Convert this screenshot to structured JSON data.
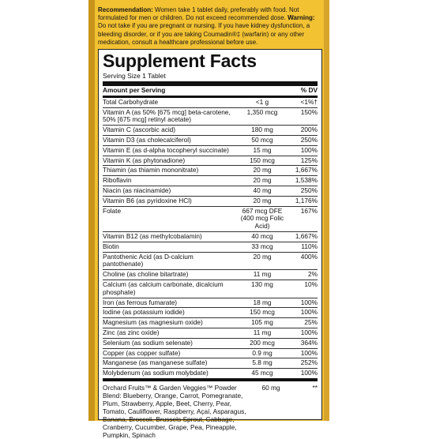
{
  "recommendation": {
    "label1": "Recommendation:",
    "text1": "Women take 1 tablet daily, preferably with food. Not formulated for men or children. Do not exceed recommended dose.",
    "label2": "Warning:",
    "text2": "Do not take if you are pregnant or nursing. If you have kidney dysfunction, a bleeding disorder, or if you are taking Coumadin®‡ (warfarin) or any other medication, consult a healthcare professional before use."
  },
  "facts": {
    "title": "Supplement Facts",
    "serving": "Serving Size 1 Tablet",
    "header": {
      "name": "Amount per Serving",
      "amt": "",
      "dv": "% DV"
    },
    "rows": [
      {
        "name": "Total Carbohydrate",
        "amt": "<1 g",
        "dv": "<1%†"
      },
      {
        "name": "Vitamin A (as 50% [675 mcg] beta-carotene, 50% [675 mcg] retinyl acetate)",
        "amt": "1,350 mcg",
        "dv": "150%"
      },
      {
        "name": "Vitamin C (ascorbic acid)",
        "amt": "180 mg",
        "dv": "200%"
      },
      {
        "name": "Vitamin D3 (as cholecalciferol)",
        "amt": "50 mcg",
        "dv": "250%"
      },
      {
        "name": "Vitamin E (as d-alpha tocopheryl succinate)",
        "amt": "15 mg",
        "dv": "100%"
      },
      {
        "name": "Vitamin K (as phytonadione)",
        "amt": "150 mcg",
        "dv": "125%"
      },
      {
        "name": "Thiamin (as thiamin mononitrate)",
        "amt": "20 mg",
        "dv": "1,667%"
      },
      {
        "name": "Riboflavin",
        "amt": "20 mg",
        "dv": "1,538%"
      },
      {
        "name": "Niacin (as niacinamide)",
        "amt": "40 mg",
        "dv": "250%"
      },
      {
        "name": "Vitamin B6 (as pyridoxine HCl)",
        "amt": "20 mg",
        "dv": "1,176%"
      },
      {
        "name": "Folate",
        "amt": "667 mcg DFE (400 mcg Folic Acid)",
        "dv": "167%"
      },
      {
        "name": "Vitamin B12 (as methylcobalamin)",
        "amt": "40 mcg",
        "dv": "1,667%"
      },
      {
        "name": "Biotin",
        "amt": "33 mcg",
        "dv": "110%"
      },
      {
        "name": "Pantothenic Acid (as D-calcium pantothenate)",
        "amt": "20 mg",
        "dv": "400%"
      },
      {
        "name": "Choline (as choline bitartrate)",
        "amt": "11 mg",
        "dv": "2%"
      },
      {
        "name": "Calcium (as calcium carbonate, dicalcium phosphate)",
        "amt": "130 mg",
        "dv": "10%"
      },
      {
        "name": "Iron (as ferrous fumarate)",
        "amt": "18 mg",
        "dv": "100%"
      },
      {
        "name": "Iodine (as potassium iodide)",
        "amt": "150 mcg",
        "dv": "100%"
      },
      {
        "name": "Magnesium (as magnesium oxide)",
        "amt": "105 mg",
        "dv": "25%"
      },
      {
        "name": "Zinc (as zinc oxide)",
        "amt": "11 mg",
        "dv": "100%"
      },
      {
        "name": "Selenium (as sodium selenate)",
        "amt": "200 mcg",
        "dv": "364%"
      },
      {
        "name": "Copper (as copper sulfate)",
        "amt": "0.9 mg",
        "dv": "100%"
      },
      {
        "name": "Manganese (as manganese sulfate)",
        "amt": "5.8 mg",
        "dv": "252%"
      },
      {
        "name": "Molybdenum (as sodium molybdate)",
        "amt": "45 mcg",
        "dv": "100%"
      }
    ],
    "blend": {
      "name": "Orchard Fruits™ & Garden Veggies™ Powder Blend: Blueberry, Orange, Carrot, Pomegranate, Plum, Strawberry, Apple, Beet, Cherry, Pear, Tomato, Cauliflower, Raspberry, Açaí, Asparagus, Banana, Broccoli, Brussels Sprout, Cabbage, Cranberry, Cucumber, Grape, Pea, Pineapple, Pumpkin, Spinach",
      "amt": "60 mg",
      "dv": "**"
    }
  },
  "colors": {
    "panel": "#f3c233",
    "ink": "#111111"
  }
}
